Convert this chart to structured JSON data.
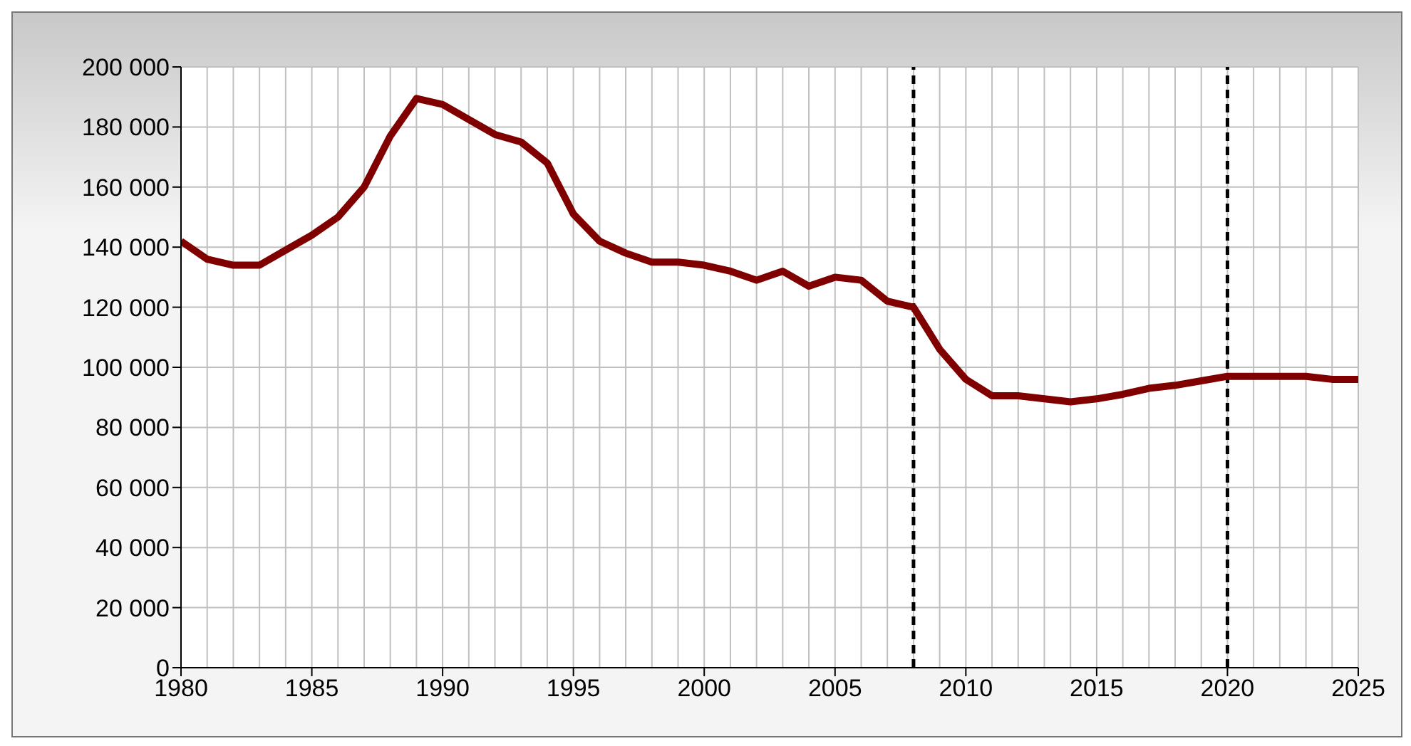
{
  "chart_data": {
    "type": "line",
    "x": [
      1980,
      1981,
      1982,
      1983,
      1984,
      1985,
      1986,
      1987,
      1988,
      1989,
      1990,
      1991,
      1992,
      1993,
      1994,
      1995,
      1996,
      1997,
      1998,
      1999,
      2000,
      2001,
      2002,
      2003,
      2004,
      2005,
      2006,
      2007,
      2008,
      2009,
      2010,
      2011,
      2012,
      2013,
      2014,
      2015,
      2016,
      2017,
      2018,
      2019,
      2020,
      2021,
      2022,
      2023,
      2024,
      2025
    ],
    "series": [
      {
        "color": "#800000",
        "values": [
          142000,
          136000,
          134000,
          134000,
          139000,
          144000,
          150000,
          160000,
          177000,
          189500,
          187500,
          182500,
          177500,
          175000,
          168000,
          151000,
          142000,
          138000,
          135000,
          135000,
          134000,
          132000,
          129000,
          132000,
          127000,
          130000,
          129000,
          122000,
          120000,
          106000,
          96000,
          90500,
          90500,
          89500,
          88500,
          89500,
          91000,
          93000,
          94000,
          95500,
          97000,
          97000,
          97000,
          97000,
          96000,
          96000
        ]
      }
    ],
    "xlim": [
      1980,
      2025
    ],
    "xticks": [
      1980,
      1985,
      1990,
      1995,
      2000,
      2005,
      2010,
      2015,
      2020,
      2025
    ],
    "ylim": [
      0,
      200000
    ],
    "yticks": [
      {
        "value": 0,
        "label": "0"
      },
      {
        "value": 20000,
        "label": "20 000"
      },
      {
        "value": 40000,
        "label": "40 000"
      },
      {
        "value": 60000,
        "label": "60 000"
      },
      {
        "value": 80000,
        "label": "80 000"
      },
      {
        "value": 100000,
        "label": "100 000"
      },
      {
        "value": 120000,
        "label": "120 000"
      },
      {
        "value": 140000,
        "label": "140 000"
      },
      {
        "value": 160000,
        "label": "160 000"
      },
      {
        "value": 180000,
        "label": "180 000"
      },
      {
        "value": 200000,
        "label": "200 000"
      }
    ],
    "grid": true,
    "marker": "none",
    "line_style": "solid",
    "legend": false,
    "ref_lines": [
      {
        "axis": "x",
        "value": 2008,
        "color": "#000000",
        "line_style": "dashed"
      },
      {
        "axis": "x",
        "value": 2020,
        "color": "#000000",
        "line_style": "dashed"
      }
    ]
  }
}
